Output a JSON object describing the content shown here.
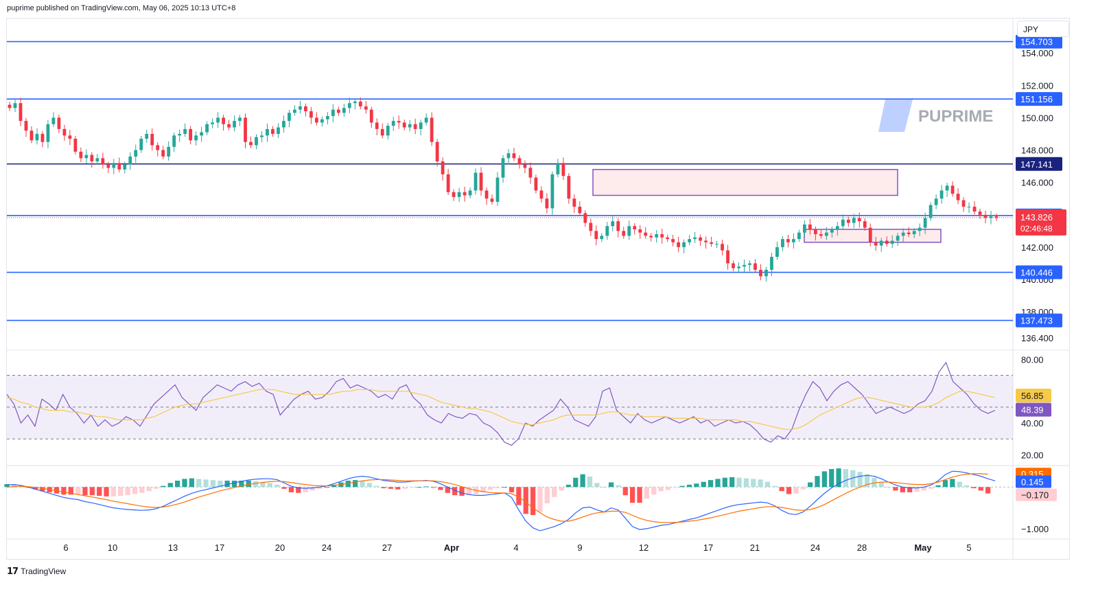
{
  "header": {
    "published": "puprime published on TradingView.com, May 06, 2025 10:13 UTC+8"
  },
  "currency": "JPY",
  "watermark": "PUPRIME",
  "footer": {
    "brand": "TradingView"
  },
  "colors": {
    "bull": "#26a69a",
    "bear": "#f23645",
    "line": "#2962ff",
    "zone": "#7e57c2",
    "rsi": "#7e57c2",
    "rsi_ma": "#f7c948",
    "macd": "#2962ff",
    "signal": "#ff6d00"
  },
  "chart_data": [
    {
      "type": "candlestick",
      "title": "",
      "ylim": [
        135.8,
        156.0
      ],
      "y_ticks": [
        "154.000",
        "152.000",
        "150.000",
        "148.000",
        "146.000",
        "142.000",
        "140.000",
        "138.000",
        "136.400"
      ],
      "x_ticks": [
        "6",
        "10",
        "13",
        "17",
        "20",
        "24",
        "27",
        "Apr",
        "4",
        "9",
        "12",
        "17",
        "21",
        "24",
        "28",
        "May",
        "5"
      ],
      "horizontal_levels": [
        {
          "label": "154.703",
          "value": 154.703
        },
        {
          "label": "151.156",
          "value": 151.156
        },
        {
          "label": "147.141",
          "value": 147.141
        },
        {
          "label": "143.956",
          "value": 143.956
        },
        {
          "label": "140.446",
          "value": 140.446
        },
        {
          "label": "137.473",
          "value": 137.473
        }
      ],
      "last_price": {
        "label": "143.826",
        "value": 143.826,
        "countdown": "02:46:48"
      },
      "zones": [
        {
          "y_top": 146.8,
          "y_bottom": 145.2
        },
        {
          "y_top": 143.1,
          "y_bottom": 142.3
        }
      ],
      "close_path": [
        150.6,
        150.9,
        149.8,
        149.2,
        148.6,
        149.0,
        148.5,
        149.6,
        150.0,
        149.3,
        148.9,
        148.7,
        147.9,
        147.5,
        147.7,
        147.3,
        147.5,
        147.1,
        146.9,
        147.2,
        146.8,
        147.1,
        147.6,
        148.0,
        148.7,
        149.0,
        148.3,
        148.0,
        147.6,
        148.2,
        148.9,
        149.0,
        149.3,
        148.6,
        148.9,
        149.1,
        149.6,
        149.7,
        150.0,
        149.6,
        149.4,
        149.8,
        150.0,
        148.5,
        148.3,
        148.8,
        148.9,
        149.3,
        149.0,
        149.4,
        149.8,
        150.3,
        150.5,
        150.7,
        150.4,
        150.0,
        149.7,
        149.9,
        150.1,
        150.5,
        150.3,
        150.6,
        150.9,
        151.0,
        150.7,
        150.5,
        149.7,
        149.3,
        148.9,
        149.5,
        149.8,
        149.7,
        149.4,
        149.6,
        149.3,
        149.7,
        150.0,
        148.5,
        147.3,
        146.5,
        145.4,
        145.1,
        145.4,
        145.2,
        145.5,
        146.6,
        145.5,
        145.0,
        144.8,
        146.3,
        147.5,
        147.8,
        147.5,
        147.1,
        146.9,
        146.3,
        145.5,
        145.0,
        144.4,
        146.5,
        147.2,
        146.4,
        145.0,
        144.5,
        144.1,
        143.5,
        143.0,
        142.5,
        142.7,
        143.3,
        143.6,
        143.0,
        142.7,
        143.3,
        143.1,
        142.9,
        142.7,
        142.6,
        142.8,
        142.6,
        142.5,
        142.3,
        142.0,
        142.3,
        142.5,
        142.6,
        142.4,
        142.3,
        142.2,
        142.2,
        141.8,
        141.0,
        140.7,
        140.8,
        140.9,
        141.0,
        140.6,
        140.2,
        140.6,
        141.4,
        142.0,
        142.5,
        142.3,
        142.5,
        142.9,
        143.4,
        143.1,
        142.8,
        142.7,
        142.9,
        143.1,
        143.3,
        143.7,
        143.5,
        143.8,
        143.6,
        143.2,
        142.3,
        142.1,
        142.4,
        142.2,
        142.4,
        142.7,
        142.9,
        142.8,
        143.0,
        143.2,
        143.8,
        144.6,
        145.0,
        145.5,
        145.8,
        145.3,
        144.9,
        144.5,
        144.5,
        144.2,
        144.0,
        143.8,
        143.9,
        143.8
      ]
    },
    {
      "type": "line",
      "title": "",
      "ylim": [
        15,
        84
      ],
      "y_ticks": [
        "80.00",
        "40.00",
        "20.00"
      ],
      "band": [
        30,
        70
      ],
      "mid": 50,
      "last": {
        "rsi_ma": "56.85",
        "rsi": "48.39"
      },
      "series": [
        {
          "values": [
            58,
            52,
            40,
            45,
            38,
            55,
            52,
            48,
            58,
            50,
            46,
            40,
            45,
            38,
            42,
            38,
            40,
            44,
            42,
            38,
            45,
            52,
            56,
            60,
            64,
            56,
            52,
            48,
            56,
            60,
            64,
            62,
            60,
            64,
            66,
            63,
            65,
            60,
            58,
            45,
            50,
            55,
            58,
            60,
            55,
            56,
            60,
            66,
            68,
            62,
            64,
            62,
            60,
            56,
            58,
            55,
            62,
            64,
            56,
            52,
            45,
            42,
            40,
            46,
            44,
            43,
            46,
            45,
            40,
            38,
            34,
            28,
            26,
            30,
            40,
            38,
            42,
            45,
            48,
            55,
            50,
            42,
            40,
            38,
            44,
            60,
            62,
            48,
            44,
            40,
            46,
            42,
            40,
            42,
            44,
            42,
            40,
            42,
            44,
            40,
            42,
            38,
            40,
            42,
            40,
            41,
            39,
            35,
            30,
            28,
            32,
            30,
            36,
            48,
            58,
            66,
            62,
            54,
            60,
            64,
            66,
            62,
            58,
            52,
            46,
            48,
            50,
            48,
            46,
            48,
            52,
            54,
            60,
            72,
            78,
            66,
            62,
            58,
            52,
            48,
            46,
            48
          ]
        },
        {
          "values": [
            56,
            55,
            53,
            52,
            50,
            49,
            48,
            48,
            48,
            47,
            47,
            46,
            45,
            44,
            44,
            43,
            42,
            42,
            42,
            42,
            43,
            44,
            46,
            48,
            50,
            51,
            52,
            52,
            53,
            54,
            55,
            56,
            57,
            58,
            59,
            60,
            61,
            61,
            61,
            60,
            59,
            58,
            58,
            58,
            58,
            58,
            58,
            59,
            60,
            60,
            61,
            61,
            61,
            60,
            60,
            60,
            60,
            60,
            59,
            58,
            57,
            55,
            53,
            52,
            51,
            50,
            49,
            49,
            48,
            47,
            45,
            43,
            41,
            40,
            39,
            39,
            40,
            41,
            42,
            44,
            45,
            45,
            45,
            45,
            45,
            46,
            47,
            47,
            46,
            45,
            45,
            44,
            44,
            44,
            44,
            43,
            43,
            43,
            43,
            43,
            42,
            42,
            42,
            42,
            42,
            41,
            41,
            40,
            39,
            38,
            37,
            36,
            36,
            37,
            39,
            42,
            45,
            47,
            49,
            51,
            53,
            55,
            56,
            56,
            55,
            54,
            53,
            52,
            51,
            50,
            50,
            50,
            51,
            53,
            56,
            58,
            60,
            60,
            59,
            58,
            57,
            56
          ]
        }
      ]
    },
    {
      "type": "bar",
      "title": "",
      "ylim": [
        -1.2,
        0.45
      ],
      "y_ticks": [
        "−1.000"
      ],
      "last": {
        "signal": "0.315",
        "macd": "0.145",
        "hist": "−0.170"
      },
      "series": [
        {
          "values": [
            0.05,
            0.06,
            0.04,
            0.0,
            -0.05,
            -0.1,
            -0.15,
            -0.2,
            -0.25,
            -0.28,
            -0.3,
            -0.35,
            -0.38,
            -0.42,
            -0.46,
            -0.5,
            -0.52,
            -0.54,
            -0.55,
            -0.56,
            -0.55,
            -0.52,
            -0.46,
            -0.38,
            -0.3,
            -0.22,
            -0.15,
            -0.1,
            -0.06,
            -0.02,
            0.02,
            0.06,
            0.1,
            0.14,
            0.17,
            0.19,
            0.2,
            0.2,
            0.18,
            0.1,
            0.02,
            -0.02,
            -0.03,
            -0.02,
            0.0,
            0.03,
            0.08,
            0.14,
            0.2,
            0.24,
            0.26,
            0.24,
            0.2,
            0.16,
            0.14,
            0.12,
            0.12,
            0.14,
            0.15,
            0.16,
            0.14,
            0.08,
            0.0,
            -0.08,
            -0.14,
            -0.18,
            -0.2,
            -0.2,
            -0.18,
            -0.16,
            -0.14,
            -0.25,
            -0.55,
            -0.82,
            -0.98,
            -1.05,
            -1.0,
            -0.95,
            -0.88,
            -0.78,
            -0.62,
            -0.5,
            -0.48,
            -0.55,
            -0.6,
            -0.5,
            -0.55,
            -0.75,
            -0.95,
            -1.02,
            -1.0,
            -0.96,
            -0.92,
            -0.9,
            -0.86,
            -0.82,
            -0.78,
            -0.74,
            -0.68,
            -0.62,
            -0.56,
            -0.5,
            -0.45,
            -0.42,
            -0.4,
            -0.38,
            -0.36,
            -0.38,
            -0.45,
            -0.56,
            -0.64,
            -0.66,
            -0.6,
            -0.46,
            -0.3,
            -0.15,
            -0.02,
            0.08,
            0.16,
            0.22,
            0.26,
            0.28,
            0.26,
            0.2,
            0.12,
            0.05,
            0.0,
            -0.02,
            -0.02,
            0.0,
            0.05,
            0.15,
            0.3,
            0.38,
            0.37,
            0.34,
            0.3,
            0.26,
            0.2,
            0.15
          ]
        },
        {
          "values": [
            0.0,
            0.01,
            0.02,
            0.01,
            -0.01,
            -0.03,
            -0.06,
            -0.09,
            -0.12,
            -0.15,
            -0.18,
            -0.21,
            -0.24,
            -0.27,
            -0.3,
            -0.34,
            -0.37,
            -0.4,
            -0.43,
            -0.46,
            -0.48,
            -0.49,
            -0.48,
            -0.45,
            -0.41,
            -0.36,
            -0.3,
            -0.24,
            -0.19,
            -0.14,
            -0.09,
            -0.05,
            -0.01,
            0.03,
            0.06,
            0.09,
            0.11,
            0.13,
            0.14,
            0.13,
            0.11,
            0.08,
            0.06,
            0.04,
            0.03,
            0.03,
            0.04,
            0.06,
            0.09,
            0.12,
            0.15,
            0.17,
            0.18,
            0.18,
            0.17,
            0.16,
            0.15,
            0.15,
            0.15,
            0.15,
            0.15,
            0.13,
            0.1,
            0.06,
            0.01,
            -0.04,
            -0.08,
            -0.11,
            -0.13,
            -0.14,
            -0.14,
            -0.16,
            -0.24,
            -0.36,
            -0.5,
            -0.62,
            -0.72,
            -0.78,
            -0.82,
            -0.82,
            -0.78,
            -0.72,
            -0.66,
            -0.62,
            -0.6,
            -0.58,
            -0.58,
            -0.61,
            -0.68,
            -0.75,
            -0.8,
            -0.83,
            -0.85,
            -0.85,
            -0.85,
            -0.84,
            -0.82,
            -0.8,
            -0.77,
            -0.74,
            -0.7,
            -0.66,
            -0.62,
            -0.58,
            -0.55,
            -0.52,
            -0.49,
            -0.47,
            -0.47,
            -0.49,
            -0.52,
            -0.55,
            -0.56,
            -0.54,
            -0.49,
            -0.42,
            -0.33,
            -0.24,
            -0.15,
            -0.07,
            0.0,
            0.06,
            0.1,
            0.12,
            0.12,
            0.11,
            0.09,
            0.07,
            0.06,
            0.06,
            0.08,
            0.12,
            0.18,
            0.24,
            0.28,
            0.31,
            0.32,
            0.32,
            0.31
          ]
        }
      ]
    }
  ]
}
